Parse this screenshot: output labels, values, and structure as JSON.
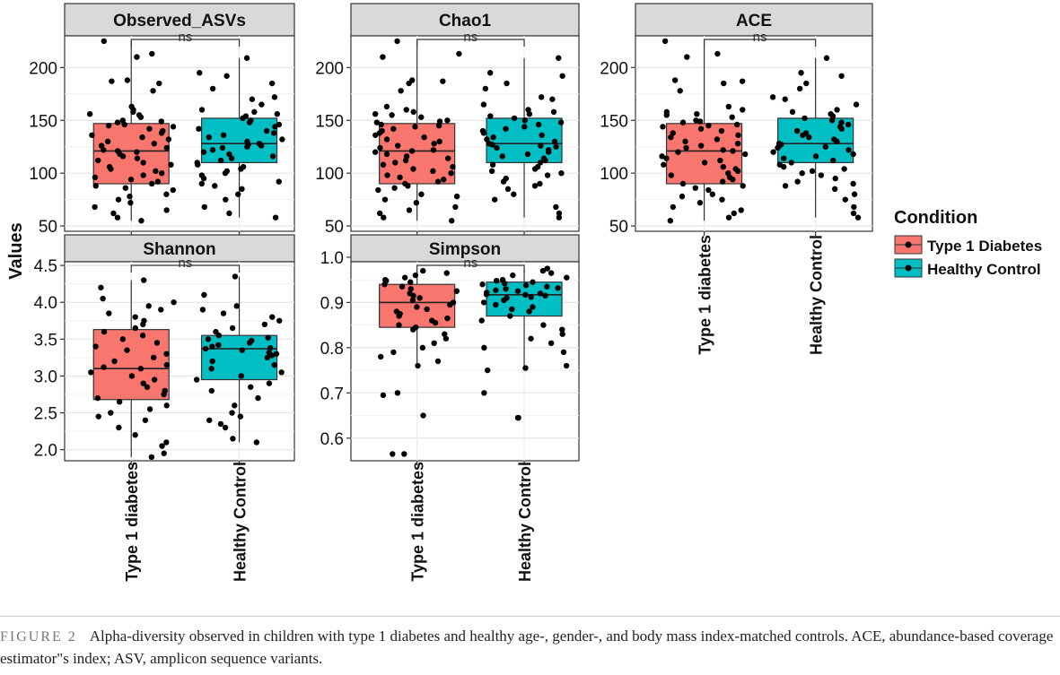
{
  "chart_data": {
    "type": "boxplot",
    "y_axis_title": "Values",
    "legend": {
      "title": "Condition",
      "entries": [
        {
          "label": "Type 1 Diabetes",
          "color": "#F8766D"
        },
        {
          "label": "Healthy Control",
          "color": "#00BFC4"
        }
      ]
    },
    "groups": [
      "Type 1 diabetes",
      "Healthy Control"
    ],
    "significance_label": "ns",
    "panels": [
      {
        "title": "Observed_ASVs",
        "ylim": [
          45,
          230
        ],
        "yticks": [
          50,
          100,
          150,
          200
        ],
        "tick_labels": [
          "50",
          "100",
          "150",
          "200"
        ],
        "boxes": [
          {
            "group": "Type 1 diabetes",
            "min": 55,
            "q1": 90,
            "median": 121,
            "q3": 147,
            "max": 225,
            "color": "#F8766D",
            "points": [
              225,
              213,
              210,
              188,
              187,
              185,
              178,
              163,
              160,
              158,
              156,
              155,
              153,
              150,
              149,
              148,
              146,
              145,
              144,
              142,
              140,
              138,
              136,
              134,
              132,
              130,
              128,
              126,
              124,
              122,
              121,
              120,
              118,
              116,
              114,
              112,
              110,
              108,
              106,
              104,
              102,
              100,
              98,
              96,
              94,
              92,
              90,
              88,
              86,
              84,
              80,
              78,
              75,
              72,
              68,
              65,
              62,
              58,
              55
            ]
          },
          {
            "group": "Healthy Control",
            "min": 58,
            "q1": 110,
            "median": 128,
            "q3": 152,
            "max": 209,
            "color": "#00BFC4",
            "points": [
              209,
              195,
              192,
              185,
              180,
              172,
              170,
              165,
              160,
              158,
              156,
              154,
              152,
              150,
              148,
              146,
              144,
              142,
              140,
              138,
              136,
              134,
              132,
              130,
              128,
              127,
              126,
              125,
              124,
              122,
              120,
              118,
              116,
              114,
              112,
              110,
              108,
              106,
              104,
              102,
              100,
              98,
              95,
              92,
              90,
              88,
              85,
              80,
              75,
              68,
              62,
              58
            ]
          }
        ]
      },
      {
        "title": "Chao1",
        "ylim": [
          45,
          230
        ],
        "yticks": [
          50,
          100,
          150,
          200
        ],
        "tick_labels": [
          "50",
          "100",
          "150",
          "200"
        ],
        "boxes": [
          {
            "group": "Type 1 diabetes",
            "min": 55,
            "q1": 90,
            "median": 121,
            "q3": 147,
            "max": 225,
            "color": "#F8766D",
            "points": [
              225,
              213,
              210,
              188,
              187,
              185,
              178,
              163,
              160,
              158,
              156,
              155,
              153,
              150,
              149,
              148,
              146,
              145,
              144,
              142,
              140,
              138,
              136,
              134,
              132,
              130,
              128,
              126,
              124,
              122,
              121,
              120,
              118,
              116,
              114,
              112,
              110,
              108,
              106,
              104,
              102,
              100,
              98,
              96,
              94,
              92,
              90,
              88,
              86,
              84,
              80,
              78,
              75,
              72,
              68,
              65,
              62,
              58,
              55
            ]
          },
          {
            "group": "Healthy Control",
            "min": 58,
            "q1": 110,
            "median": 128,
            "q3": 152,
            "max": 209,
            "color": "#00BFC4",
            "points": [
              209,
              195,
              192,
              185,
              180,
              172,
              170,
              165,
              160,
              158,
              156,
              154,
              152,
              150,
              148,
              146,
              144,
              142,
              140,
              138,
              136,
              134,
              132,
              130,
              128,
              127,
              126,
              125,
              124,
              122,
              120,
              118,
              116,
              114,
              112,
              110,
              108,
              106,
              104,
              102,
              100,
              98,
              95,
              92,
              90,
              88,
              85,
              80,
              75,
              68,
              62,
              58
            ]
          }
        ]
      },
      {
        "title": "ACE",
        "ylim": [
          45,
          230
        ],
        "yticks": [
          50,
          100,
          150,
          200
        ],
        "tick_labels": [
          "50",
          "100",
          "150",
          "200"
        ],
        "boxes": [
          {
            "group": "Type 1 diabetes",
            "min": 55,
            "q1": 90,
            "median": 121,
            "q3": 147,
            "max": 225,
            "color": "#F8766D",
            "points": [
              225,
              213,
              210,
              188,
              187,
              185,
              178,
              163,
              160,
              158,
              156,
              155,
              153,
              150,
              149,
              148,
              146,
              145,
              144,
              142,
              140,
              138,
              136,
              134,
              132,
              130,
              128,
              126,
              124,
              122,
              121,
              120,
              118,
              116,
              114,
              112,
              110,
              108,
              106,
              104,
              102,
              100,
              98,
              96,
              94,
              92,
              90,
              88,
              86,
              84,
              80,
              78,
              75,
              72,
              68,
              65,
              62,
              58,
              55
            ]
          },
          {
            "group": "Healthy Control",
            "min": 58,
            "q1": 110,
            "median": 128,
            "q3": 152,
            "max": 209,
            "color": "#00BFC4",
            "points": [
              209,
              195,
              192,
              185,
              180,
              172,
              170,
              165,
              160,
              158,
              156,
              154,
              152,
              150,
              148,
              146,
              144,
              142,
              140,
              138,
              136,
              134,
              132,
              130,
              128,
              127,
              126,
              125,
              124,
              122,
              120,
              118,
              116,
              114,
              112,
              110,
              108,
              106,
              104,
              102,
              100,
              98,
              95,
              92,
              90,
              88,
              85,
              80,
              75,
              68,
              62,
              58
            ]
          }
        ]
      },
      {
        "title": "Shannon",
        "ylim": [
          1.85,
          4.55
        ],
        "yticks": [
          2.0,
          2.5,
          3.0,
          3.5,
          4.0,
          4.5
        ],
        "tick_labels": [
          "2.0",
          "2.5",
          "3.0",
          "3.5",
          "4.0",
          "4.5"
        ],
        "boxes": [
          {
            "group": "Type 1 diabetes",
            "min": 1.9,
            "q1": 2.68,
            "median": 3.1,
            "q3": 3.63,
            "max": 4.3,
            "color": "#F8766D",
            "points": [
              4.3,
              4.2,
              4.05,
              4.0,
              3.95,
              3.9,
              3.85,
              3.8,
              3.75,
              3.7,
              3.65,
              3.6,
              3.55,
              3.5,
              3.45,
              3.4,
              3.35,
              3.3,
              3.25,
              3.2,
              3.15,
              3.12,
              3.1,
              3.05,
              3.0,
              2.95,
              2.9,
              2.85,
              2.8,
              2.75,
              2.7,
              2.65,
              2.6,
              2.55,
              2.5,
              2.45,
              2.4,
              2.3,
              2.2,
              2.1,
              2.05,
              1.95,
              1.9
            ]
          },
          {
            "group": "Healthy Control",
            "min": 2.1,
            "q1": 2.95,
            "median": 3.37,
            "q3": 3.55,
            "max": 4.35,
            "color": "#00BFC4",
            "points": [
              4.35,
              4.1,
              3.95,
              3.9,
              3.85,
              3.8,
              3.75,
              3.7,
              3.65,
              3.6,
              3.55,
              3.52,
              3.5,
              3.48,
              3.45,
              3.42,
              3.4,
              3.38,
              3.37,
              3.35,
              3.32,
              3.3,
              3.28,
              3.25,
              3.2,
              3.15,
              3.1,
              3.05,
              3.0,
              2.95,
              2.9,
              2.85,
              2.8,
              2.7,
              2.6,
              2.5,
              2.45,
              2.4,
              2.35,
              2.3,
              2.15,
              2.1
            ]
          }
        ]
      },
      {
        "title": "Simpson",
        "ylim": [
          0.55,
          0.99
        ],
        "yticks": [
          0.6,
          0.7,
          0.8,
          0.9,
          1.0
        ],
        "tick_labels": [
          "0.6",
          "0.7",
          "0.8",
          "0.9",
          "1.0"
        ],
        "boxes": [
          {
            "group": "Type 1 diabetes",
            "min": 0.755,
            "q1": 0.845,
            "median": 0.9,
            "q3": 0.94,
            "max": 0.97,
            "color": "#F8766D",
            "points": [
              0.97,
              0.965,
              0.96,
              0.955,
              0.95,
              0.948,
              0.945,
              0.94,
              0.935,
              0.93,
              0.925,
              0.92,
              0.915,
              0.91,
              0.905,
              0.9,
              0.895,
              0.89,
              0.885,
              0.88,
              0.875,
              0.87,
              0.865,
              0.86,
              0.855,
              0.85,
              0.845,
              0.84,
              0.83,
              0.82,
              0.81,
              0.8,
              0.79,
              0.78,
              0.77,
              0.76,
              0.7,
              0.695,
              0.65,
              0.565,
              0.565
            ]
          },
          {
            "group": "Healthy Control",
            "min": 0.76,
            "q1": 0.87,
            "median": 0.917,
            "q3": 0.945,
            "max": 0.975,
            "color": "#00BFC4",
            "points": [
              0.975,
              0.97,
              0.965,
              0.96,
              0.955,
              0.95,
              0.948,
              0.945,
              0.942,
              0.94,
              0.938,
              0.935,
              0.932,
              0.93,
              0.927,
              0.925,
              0.922,
              0.92,
              0.918,
              0.917,
              0.915,
              0.912,
              0.91,
              0.905,
              0.9,
              0.895,
              0.89,
              0.885,
              0.88,
              0.87,
              0.86,
              0.85,
              0.84,
              0.83,
              0.82,
              0.81,
              0.8,
              0.79,
              0.76,
              0.755,
              0.75,
              0.7,
              0.645,
              0.645
            ]
          }
        ]
      }
    ]
  },
  "caption": {
    "label": "FIGURE 2",
    "text": "Alpha-diversity observed in children with type 1 diabetes and healthy age-, gender-, and body mass index-matched controls. ACE, abundance-based coverage estimator\"s index; ASV, amplicon sequence variants."
  }
}
